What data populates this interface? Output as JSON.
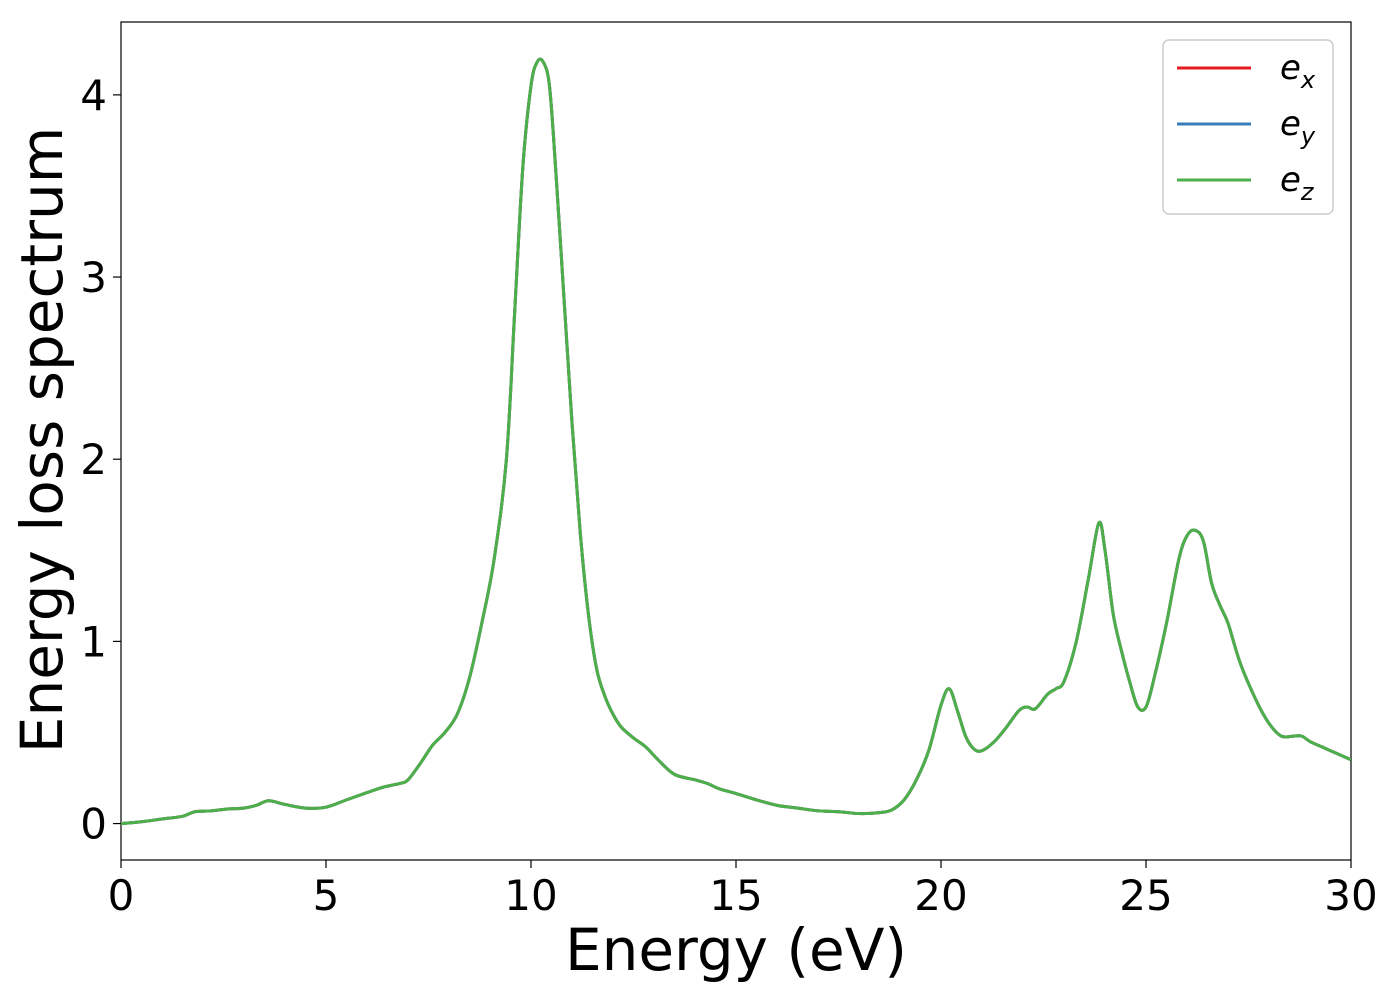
{
  "chart_data": {
    "type": "line",
    "xlabel": "Energy (eV)",
    "ylabel": "Energy loss spectrum",
    "xlim": [
      0,
      30
    ],
    "ylim": [
      -0.2,
      4.4
    ],
    "xticks": [
      0,
      5,
      10,
      15,
      20,
      25,
      30
    ],
    "yticks": [
      0,
      1,
      2,
      3,
      4
    ],
    "xtick_labels": [
      "0",
      "5",
      "10",
      "15",
      "20",
      "25",
      "30"
    ],
    "ytick_labels": [
      "0",
      "1",
      "2",
      "3",
      "4"
    ],
    "grid": false,
    "legend_position": "top-right",
    "x": [
      0,
      0.5,
      1.0,
      1.5,
      1.8,
      2.2,
      2.6,
      3.0,
      3.3,
      3.6,
      4.0,
      4.5,
      5.0,
      5.5,
      6.0,
      6.4,
      6.8,
      7.0,
      7.3,
      7.6,
      7.9,
      8.2,
      8.5,
      8.8,
      9.1,
      9.4,
      9.6,
      9.8,
      10.0,
      10.15,
      10.3,
      10.45,
      10.6,
      10.8,
      11.0,
      11.2,
      11.4,
      11.6,
      11.8,
      12.0,
      12.2,
      12.5,
      12.8,
      13.1,
      13.5,
      14.0,
      14.3,
      14.6,
      15.0,
      15.5,
      16.0,
      16.5,
      17.0,
      17.5,
      18.0,
      18.5,
      18.8,
      19.1,
      19.4,
      19.7,
      20.0,
      20.2,
      20.4,
      20.6,
      20.8,
      21.0,
      21.3,
      21.6,
      21.9,
      22.1,
      22.3,
      22.6,
      22.8,
      23.0,
      23.3,
      23.6,
      23.85,
      24.0,
      24.2,
      24.4,
      24.6,
      24.8,
      25.0,
      25.2,
      25.5,
      25.8,
      26.0,
      26.2,
      26.4,
      26.6,
      26.8,
      27.0,
      27.3,
      27.7,
      28.0,
      28.3,
      28.6,
      28.8,
      29.0,
      29.3,
      29.6,
      29.8,
      30.0
    ],
    "series": [
      {
        "name": "e_x",
        "label_base": "e",
        "label_sub": "x",
        "color": "#e41a1c"
      },
      {
        "name": "e_y",
        "label_base": "e",
        "label_sub": "y",
        "color": "#377eb8"
      },
      {
        "name": "e_z",
        "label_base": "e",
        "label_sub": "z",
        "color": "#4daf4a"
      }
    ],
    "shared_values": [
      0.0,
      0.01,
      0.025,
      0.04,
      0.065,
      0.07,
      0.08,
      0.085,
      0.1,
      0.125,
      0.105,
      0.085,
      0.09,
      0.13,
      0.17,
      0.2,
      0.22,
      0.24,
      0.33,
      0.43,
      0.5,
      0.6,
      0.8,
      1.1,
      1.45,
      2.0,
      2.8,
      3.6,
      4.05,
      4.18,
      4.18,
      4.05,
      3.6,
      2.9,
      2.2,
      1.6,
      1.15,
      0.85,
      0.7,
      0.6,
      0.53,
      0.47,
      0.42,
      0.35,
      0.27,
      0.24,
      0.22,
      0.19,
      0.165,
      0.13,
      0.1,
      0.085,
      0.07,
      0.065,
      0.055,
      0.06,
      0.075,
      0.13,
      0.24,
      0.4,
      0.65,
      0.74,
      0.62,
      0.48,
      0.41,
      0.4,
      0.45,
      0.53,
      0.62,
      0.64,
      0.63,
      0.71,
      0.74,
      0.78,
      1.0,
      1.35,
      1.65,
      1.5,
      1.15,
      0.95,
      0.78,
      0.64,
      0.64,
      0.8,
      1.1,
      1.45,
      1.58,
      1.61,
      1.55,
      1.32,
      1.2,
      1.1,
      0.88,
      0.67,
      0.55,
      0.48,
      0.48,
      0.48,
      0.45,
      0.42,
      0.39,
      0.37,
      0.35
    ]
  }
}
